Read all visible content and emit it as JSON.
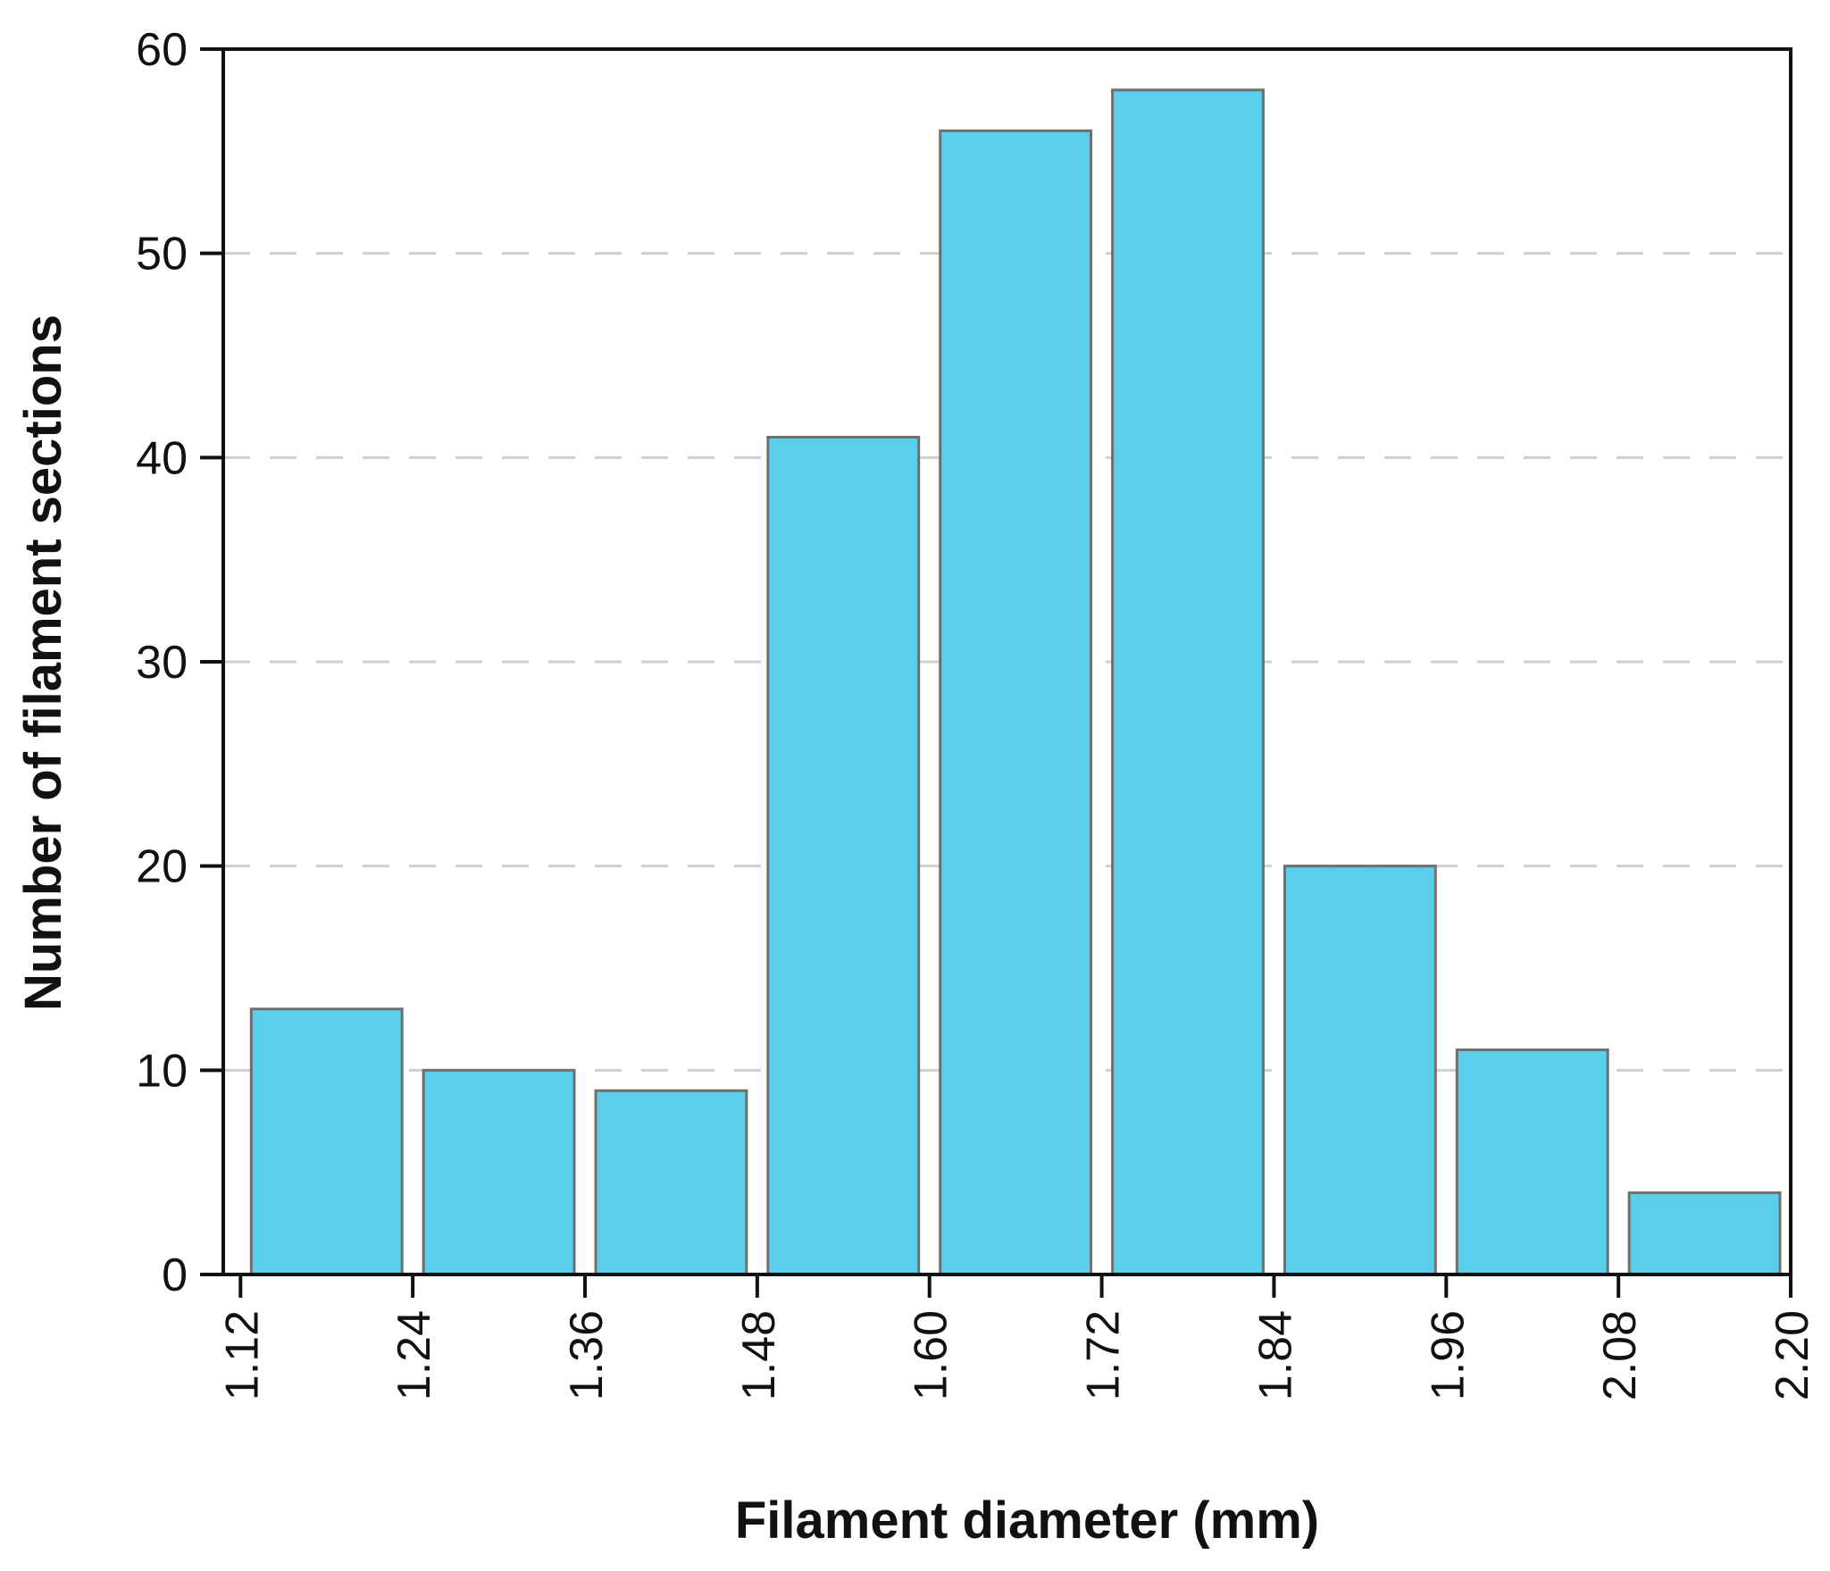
{
  "chart_data": {
    "type": "histogram",
    "x_label": "Filament diameter (mm)",
    "y_label": "Number of filament sections",
    "bins": [
      1.12,
      1.24,
      1.36,
      1.48,
      1.6,
      1.72,
      1.84,
      1.96,
      2.08,
      2.2
    ],
    "values": [
      13,
      10,
      9,
      41,
      56,
      58,
      20,
      11,
      4
    ],
    "color": "#59cfec",
    "edge_color": "#6f6f6f",
    "xlim": [
      1.108,
      2.2
    ],
    "xticks": [
      1.12,
      1.24,
      1.36,
      1.48,
      {
        "value": 1.6,
        "label": "1.60"
      },
      1.72,
      1.84,
      1.96,
      2.08,
      {
        "value": 2.2,
        "label": "2.20"
      }
    ],
    "ylim": [
      0,
      60
    ],
    "yticks": [
      0,
      10,
      20,
      30,
      40,
      50,
      60
    ],
    "grid": true
  }
}
